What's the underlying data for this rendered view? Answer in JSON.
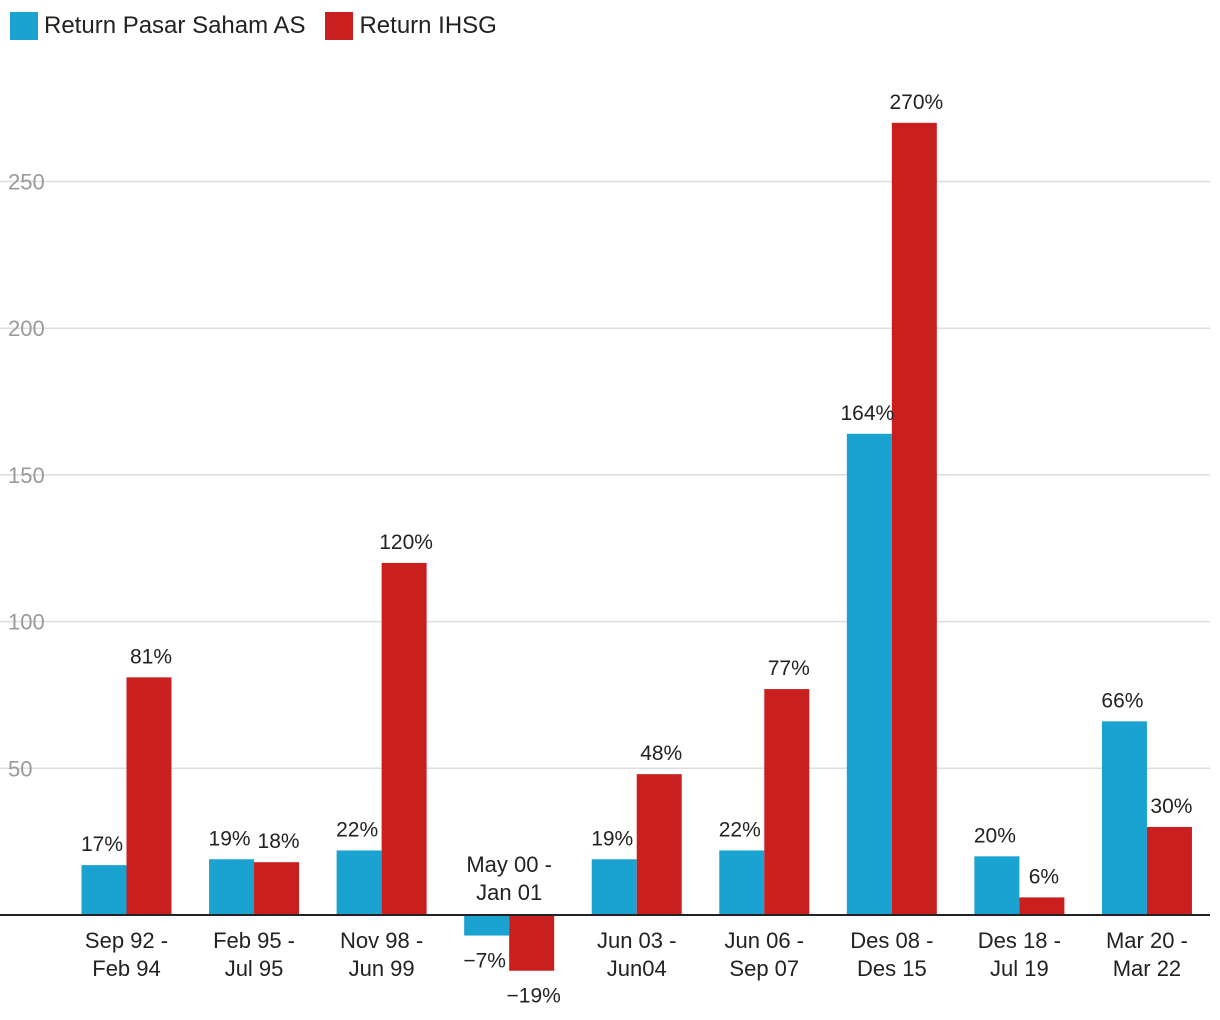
{
  "chart_data": {
    "type": "bar",
    "title": "",
    "xlabel": "",
    "ylabel": "",
    "ylim": [
      -25,
      280
    ],
    "yticks": [
      50,
      100,
      150,
      200,
      250
    ],
    "grid": true,
    "legend_position": "top-left",
    "categories": [
      [
        "Sep 92 -",
        "Feb 94"
      ],
      [
        "Feb 95 -",
        "Jul 95"
      ],
      [
        "Nov 98 -",
        "Jun 99"
      ],
      [
        "May 00 -",
        "Jan 01"
      ],
      [
        "Jun 03 -",
        "Jun04"
      ],
      [
        "Jun 06 -",
        "Sep 07"
      ],
      [
        "Des 08 -",
        "Des 15"
      ],
      [
        "Des 18 -",
        "Jul 19"
      ],
      [
        "Mar 20 -",
        "Mar 22"
      ]
    ],
    "series": [
      {
        "name": "Return Pasar Saham AS",
        "color": "#1aa2d0",
        "values": [
          17,
          19,
          22,
          -7,
          19,
          22,
          164,
          20,
          66
        ],
        "labels": [
          "17%",
          "19%",
          "22%",
          "−7%",
          "19%",
          "22%",
          "164%",
          "20%",
          "66%"
        ]
      },
      {
        "name": "Return IHSG",
        "color": "#c91f1f",
        "values": [
          81,
          18,
          120,
          -19,
          48,
          77,
          270,
          6,
          30
        ],
        "labels": [
          "81%",
          "18%",
          "120%",
          "−19%",
          "48%",
          "77%",
          "270%",
          "6%",
          "30%"
        ]
      }
    ]
  }
}
